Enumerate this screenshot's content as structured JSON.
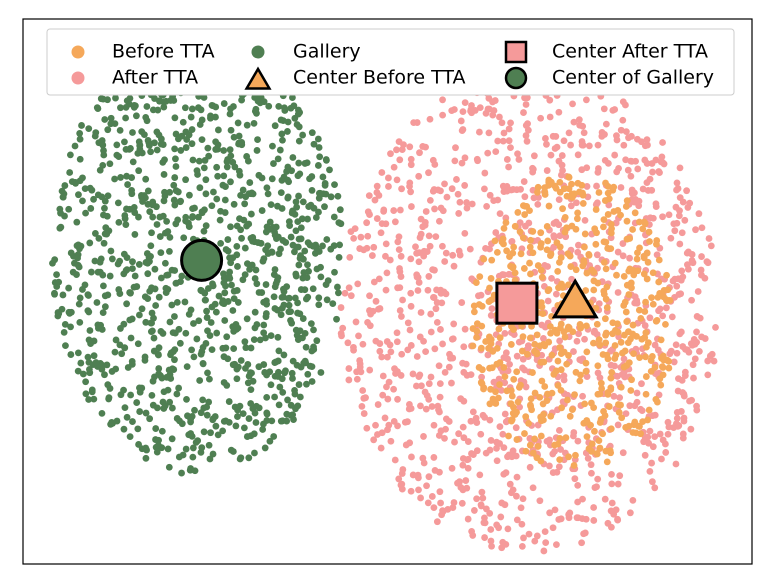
{
  "chart_data": {
    "type": "scatter",
    "title": "",
    "xlabel": "",
    "ylabel": "",
    "axes_visible": false,
    "grid": false,
    "legend_position": "top",
    "xlim": [
      -10,
      10
    ],
    "ylim": [
      -7,
      7
    ],
    "series": [
      {
        "name": "Before TTA",
        "marker": "circle",
        "color": "#F5A85A",
        "cloud": {
          "count": 520,
          "center": [
            5.1,
            -0.8
          ],
          "radius": [
            2.8,
            3.8
          ]
        }
      },
      {
        "name": "After TTA",
        "marker": "circle",
        "color": "#F59A9A",
        "cloud": {
          "count": 1200,
          "center": [
            3.9,
            -0.5
          ],
          "radius": [
            5.2,
            6.2
          ]
        }
      },
      {
        "name": "Gallery",
        "marker": "circle",
        "color": "#4F7F52",
        "cloud": {
          "count": 1150,
          "center": [
            -5.2,
            0.9
          ],
          "radius": [
            4.0,
            5.6
          ]
        }
      },
      {
        "name": "Center Before TTA",
        "marker": "triangle",
        "color": "#F5A85A",
        "points": [
          [
            5.15,
            -0.3
          ]
        ]
      },
      {
        "name": "Center After TTA",
        "marker": "square",
        "color": "#F59A9A",
        "points": [
          [
            3.55,
            -0.3
          ]
        ]
      },
      {
        "name": "Center of Gallery",
        "marker": "circle",
        "color": "#4F7F52",
        "points": [
          [
            -5.1,
            0.8
          ]
        ]
      }
    ],
    "legend": {
      "entries": [
        {
          "label": "Before TTA",
          "marker": "circle",
          "color": "#F5A85A"
        },
        {
          "label": "After TTA",
          "marker": "circle",
          "color": "#F59A9A"
        },
        {
          "label": "Gallery",
          "marker": "circle",
          "color": "#4F7F52"
        },
        {
          "label": "Center Before TTA",
          "marker": "triangle",
          "color": "#F5A85A"
        },
        {
          "label": "Center After TTA",
          "marker": "square",
          "color": "#F59A9A"
        },
        {
          "label": "Center of Gallery",
          "marker": "circle",
          "color": "#4F7F52"
        }
      ]
    }
  }
}
